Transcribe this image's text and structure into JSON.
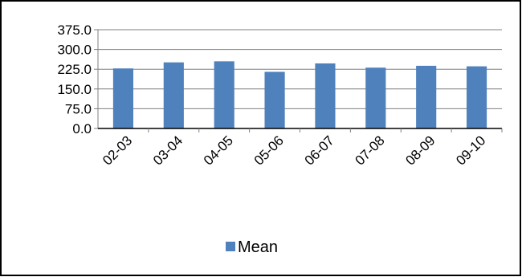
{
  "chart_data": {
    "type": "bar",
    "categories": [
      "02-03",
      "03-04",
      "04-05",
      "05-06",
      "06-07",
      "07-08",
      "08-09",
      "09-10"
    ],
    "series": [
      {
        "name": "Mean",
        "values": [
          228,
          251,
          255,
          215,
          247,
          231,
          238,
          236
        ],
        "color": "#4F81BD"
      }
    ],
    "ylim": [
      0,
      375
    ],
    "yticks": [
      "375.0",
      "300.0",
      "225.0",
      "150.0",
      "75.0",
      "0.0"
    ],
    "grid": true,
    "legend": "bottom",
    "title": "",
    "xlabel": "",
    "ylabel": ""
  }
}
